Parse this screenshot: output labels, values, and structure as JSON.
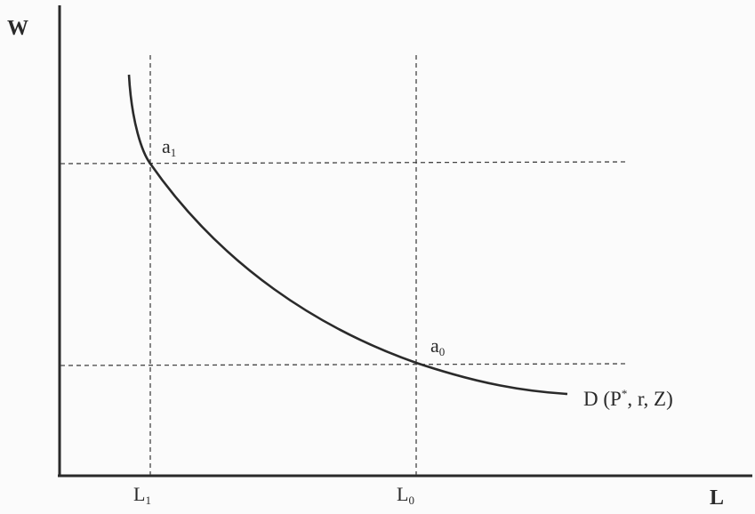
{
  "axes": {
    "y_label": "W",
    "x_label": "L"
  },
  "x_ticks": [
    {
      "base": "L",
      "sub": "1"
    },
    {
      "base": "L",
      "sub": "0"
    }
  ],
  "points": [
    {
      "base": "a",
      "sub": "1"
    },
    {
      "base": "a",
      "sub": "0"
    }
  ],
  "curve": {
    "label_prefix": "D (P",
    "label_sup": "*",
    "label_suffix": ", r, Z)"
  }
}
